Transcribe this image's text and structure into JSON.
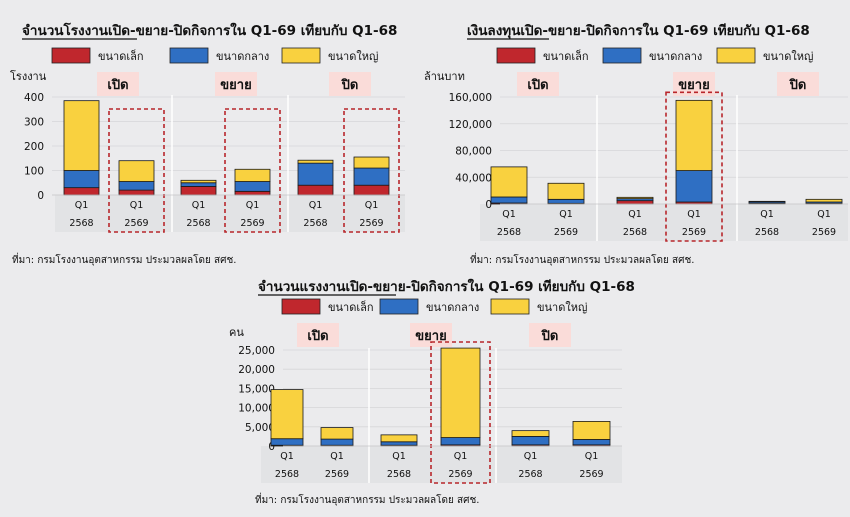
{
  "colors": {
    "small": "#c0272d",
    "medium": "#2f6fc3",
    "large": "#f9d13f",
    "highlight": "#b8262b",
    "section_bg": "#fadcd9",
    "axis_band": "#e2e3e5"
  },
  "legend_labels": [
    "ขนาดเล็ก",
    "ขนาดกลาง",
    "ขนาดใหญ่"
  ],
  "section_labels": [
    "เปิด",
    "ขยาย",
    "ปิด"
  ],
  "source_note": "ที่มา: กรมโรงงานอุตสาหกรรม ประมวลผลโดย สศช.",
  "chart_data": [
    {
      "type": "bar",
      "stacked": true,
      "title": "จำนวนโรงงานเปิด-ขยาย-ปิดกิจการใน Q1-69 เทียบกับ Q1-68",
      "title_underline": "จำนวนโรงงาน",
      "ylabel": "โรงงาน",
      "ylim": [
        0,
        400
      ],
      "yticks": [
        "0",
        "100",
        "200",
        "300",
        "400"
      ],
      "categories": [
        {
          "quarter": "Q1",
          "year": "2568",
          "section": "เปิด"
        },
        {
          "quarter": "Q1",
          "year": "2569",
          "section": "เปิด",
          "highlight": true
        },
        {
          "quarter": "Q1",
          "year": "2568",
          "section": "ขยาย"
        },
        {
          "quarter": "Q1",
          "year": "2569",
          "section": "ขยาย",
          "highlight": true
        },
        {
          "quarter": "Q1",
          "year": "2568",
          "section": "ปิด"
        },
        {
          "quarter": "Q1",
          "year": "2569",
          "section": "ปิด",
          "highlight": true
        }
      ],
      "series": [
        {
          "name": "ขนาดเล็ก",
          "values": [
            30,
            20,
            35,
            15,
            40,
            40
          ]
        },
        {
          "name": "ขนาดกลาง",
          "values": [
            70,
            35,
            15,
            40,
            90,
            70
          ]
        },
        {
          "name": "ขนาดใหญ่",
          "values": [
            285,
            85,
            10,
            50,
            12,
            45
          ]
        }
      ]
    },
    {
      "type": "bar",
      "stacked": true,
      "title": "เงินลงทุนเปิด-ขยาย-ปิดกิจการใน Q1-69 เทียบกับ Q1-68",
      "title_underline": "เงินลงทุน",
      "ylabel": "ล้านบาท",
      "ylim": [
        0,
        160000
      ],
      "yticks": [
        "0",
        "40,000",
        "80,000",
        "120,000",
        "160,000"
      ],
      "categories": [
        {
          "quarter": "Q1",
          "year": "2568",
          "section": "เปิด"
        },
        {
          "quarter": "Q1",
          "year": "2569",
          "section": "เปิด"
        },
        {
          "quarter": "Q1",
          "year": "2568",
          "section": "ขยาย"
        },
        {
          "quarter": "Q1",
          "year": "2569",
          "section": "ขยาย",
          "highlight": true
        },
        {
          "quarter": "Q1",
          "year": "2568",
          "section": "ปิด"
        },
        {
          "quarter": "Q1",
          "year": "2569",
          "section": "ปิด"
        }
      ],
      "series": [
        {
          "name": "ขนาดเล็ก",
          "values": [
            1500,
            1000,
            5000,
            3000,
            1000,
            1000
          ]
        },
        {
          "name": "ขนาดกลาง",
          "values": [
            9000,
            6000,
            3000,
            47000,
            2000,
            2000
          ]
        },
        {
          "name": "ขนาดใหญ่",
          "values": [
            45000,
            24000,
            2000,
            105000,
            1000,
            4000
          ]
        }
      ]
    },
    {
      "type": "bar",
      "stacked": true,
      "title": "จำนวนแรงงานเปิด-ขยาย-ปิดกิจการใน Q1-69 เทียบกับ Q1-68",
      "title_underline": "จำนวนแรงงาน",
      "ylabel": "คน",
      "ylim": [
        0,
        25000
      ],
      "yticks": [
        "0",
        "5,000",
        "10,000",
        "15,000",
        "20,000",
        "25,000"
      ],
      "categories": [
        {
          "quarter": "Q1",
          "year": "2568",
          "section": "เปิด"
        },
        {
          "quarter": "Q1",
          "year": "2569",
          "section": "เปิด"
        },
        {
          "quarter": "Q1",
          "year": "2568",
          "section": "ขยาย"
        },
        {
          "quarter": "Q1",
          "year": "2569",
          "section": "ขยาย",
          "highlight": true
        },
        {
          "quarter": "Q1",
          "year": "2568",
          "section": "ปิด"
        },
        {
          "quarter": "Q1",
          "year": "2569",
          "section": "ปิด"
        }
      ],
      "series": [
        {
          "name": "ขนาดเล็ก",
          "values": [
            200,
            200,
            200,
            300,
            300,
            300
          ]
        },
        {
          "name": "ขนาดกลาง",
          "values": [
            1700,
            1600,
            900,
            1900,
            2200,
            1400
          ]
        },
        {
          "name": "ขนาดใหญ่",
          "values": [
            12800,
            3000,
            1800,
            23300,
            1500,
            4700
          ]
        }
      ]
    }
  ]
}
